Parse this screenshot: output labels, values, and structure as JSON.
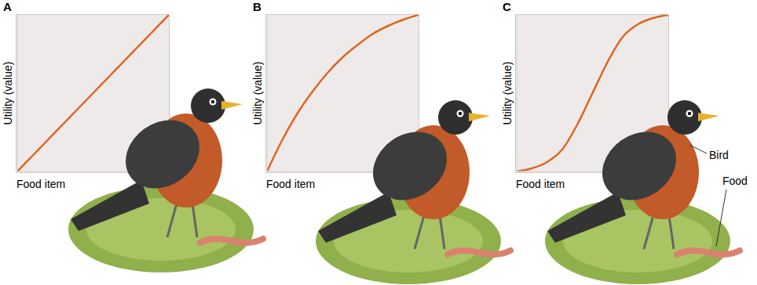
{
  "chart_data": [
    {
      "type": "line",
      "title": "A",
      "x_label": "Food item",
      "y_label": "Utility (value)",
      "x": [
        0,
        0.1,
        0.2,
        0.3,
        0.4,
        0.5,
        0.6,
        0.7,
        0.8,
        0.9,
        1.0
      ],
      "values": [
        0,
        0.1,
        0.2,
        0.3,
        0.4,
        0.5,
        0.6,
        0.7,
        0.8,
        0.9,
        1.0
      ],
      "color": "#e0641e",
      "xlim": [
        0,
        1
      ],
      "ylim": [
        0,
        1
      ],
      "xticks": [
        0,
        1
      ],
      "yticks": [
        0,
        1
      ],
      "grid": false,
      "tick_labels": false
    },
    {
      "type": "line",
      "title": "B",
      "x_label": "Food item",
      "y_label": "Utility (value)",
      "x": [
        0,
        0.1,
        0.2,
        0.3,
        0.4,
        0.5,
        0.6,
        0.7,
        0.8,
        0.9,
        1.0
      ],
      "values": [
        0,
        0.2,
        0.37,
        0.51,
        0.63,
        0.73,
        0.81,
        0.88,
        0.93,
        0.97,
        1.0
      ],
      "color": "#e0641e",
      "xlim": [
        0,
        1
      ],
      "ylim": [
        0,
        1
      ],
      "xticks": [
        0,
        1
      ],
      "yticks": [
        0,
        1
      ],
      "grid": false,
      "tick_labels": false
    },
    {
      "type": "line",
      "title": "C",
      "x_label": "Food item",
      "y_label": "Utility (value)",
      "x": [
        0,
        0.1,
        0.2,
        0.3,
        0.4,
        0.5,
        0.6,
        0.7,
        0.8,
        0.9,
        1.0
      ],
      "values": [
        0,
        0.02,
        0.06,
        0.14,
        0.3,
        0.5,
        0.7,
        0.86,
        0.94,
        0.98,
        1.0
      ],
      "color": "#e0641e",
      "xlim": [
        0,
        1
      ],
      "ylim": [
        0,
        1
      ],
      "xticks": [
        0,
        1
      ],
      "yticks": [
        0,
        1
      ],
      "grid": false,
      "tick_labels": false,
      "annotations": [
        "Bird",
        "Food"
      ]
    }
  ]
}
